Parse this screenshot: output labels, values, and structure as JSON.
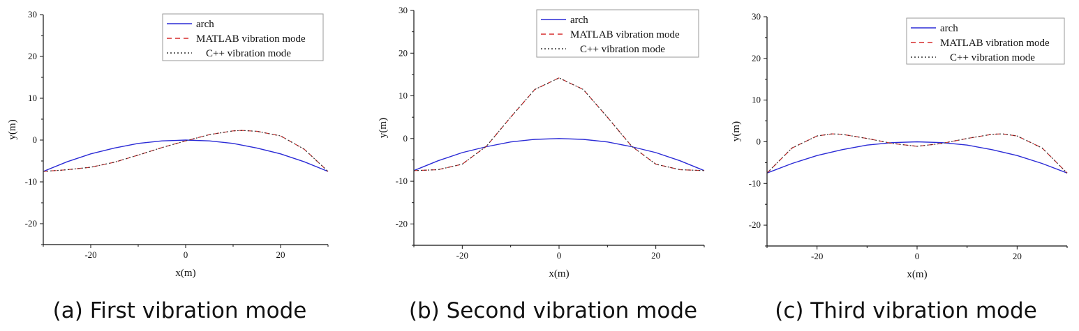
{
  "chart_data": [
    {
      "type": "line",
      "caption": "(a) First vibration mode",
      "xlabel": "x(m)",
      "ylabel": "y(m)",
      "xlim": [
        -30,
        30
      ],
      "ylim": [
        -25,
        30
      ],
      "xticks": [
        -20,
        0,
        20
      ],
      "yticks": [
        -20,
        -10,
        0,
        10,
        20,
        30
      ],
      "grid": false,
      "legend_position": "top-right",
      "colors": {
        "arch": "#2b2bd6",
        "matlab": "#d62b2b",
        "cpp": "#333333"
      },
      "series": [
        {
          "name": "arch",
          "style": "solid",
          "x": [
            -30,
            -25,
            -20,
            -15,
            -10,
            -5,
            0,
            5,
            10,
            15,
            20,
            25,
            30
          ],
          "y": [
            -7.5,
            -5.2,
            -3.3,
            -1.9,
            -0.8,
            -0.2,
            0,
            -0.2,
            -0.8,
            -1.9,
            -3.3,
            -5.2,
            -7.5
          ]
        },
        {
          "name": "MATLAB vibration mode",
          "style": "dashed",
          "x": [
            -30,
            -25,
            -20,
            -15,
            -10,
            -5,
            0,
            5,
            10,
            12,
            15,
            20,
            25,
            30
          ],
          "y": [
            -7.5,
            -7.1,
            -6.5,
            -5.3,
            -3.6,
            -1.8,
            -0.2,
            1.3,
            2.2,
            2.3,
            2.1,
            1.0,
            -2.2,
            -7.5
          ]
        },
        {
          "name": "C++ vibration mode",
          "style": "dotted",
          "x": [
            -30,
            -25,
            -20,
            -15,
            -10,
            -5,
            0,
            5,
            10,
            12,
            15,
            20,
            25,
            30
          ],
          "y": [
            -7.5,
            -7.1,
            -6.5,
            -5.3,
            -3.6,
            -1.8,
            -0.2,
            1.3,
            2.2,
            2.3,
            2.1,
            1.0,
            -2.2,
            -7.5
          ]
        }
      ]
    },
    {
      "type": "line",
      "caption": "(b) Second vibration mode",
      "xlabel": "x(m)",
      "ylabel": "y(m)",
      "xlim": [
        -30,
        30
      ],
      "ylim": [
        -25,
        30
      ],
      "xticks": [
        -20,
        0,
        20
      ],
      "yticks": [
        -20,
        -10,
        0,
        10,
        20,
        30
      ],
      "grid": false,
      "legend_position": "top-right",
      "colors": {
        "arch": "#2b2bd6",
        "matlab": "#d62b2b",
        "cpp": "#333333"
      },
      "series": [
        {
          "name": "arch",
          "style": "solid",
          "x": [
            -30,
            -25,
            -20,
            -15,
            -10,
            -5,
            0,
            5,
            10,
            15,
            20,
            25,
            30
          ],
          "y": [
            -7.5,
            -5.2,
            -3.3,
            -1.9,
            -0.8,
            -0.2,
            0,
            -0.2,
            -0.8,
            -1.9,
            -3.3,
            -5.2,
            -7.5
          ]
        },
        {
          "name": "MATLAB vibration mode",
          "style": "dashed",
          "x": [
            -30,
            -25,
            -20,
            -15,
            -10,
            -5,
            0,
            5,
            10,
            15,
            20,
            25,
            30
          ],
          "y": [
            -7.5,
            -7.3,
            -6.0,
            -1.8,
            5.0,
            11.5,
            14.2,
            11.5,
            5.0,
            -1.8,
            -6.0,
            -7.3,
            -7.5
          ]
        },
        {
          "name": "C++ vibration mode",
          "style": "dotted",
          "x": [
            -30,
            -25,
            -20,
            -15,
            -10,
            -5,
            0,
            5,
            10,
            15,
            20,
            25,
            30
          ],
          "y": [
            -7.5,
            -7.3,
            -6.0,
            -1.8,
            5.0,
            11.5,
            14.2,
            11.5,
            5.0,
            -1.8,
            -6.0,
            -7.3,
            -7.5
          ]
        }
      ]
    },
    {
      "type": "line",
      "caption": "(c) Third vibration mode",
      "xlabel": "x(m)",
      "ylabel": "y(m)",
      "xlim": [
        -30,
        30
      ],
      "ylim": [
        -25,
        30
      ],
      "xticks": [
        -20,
        0,
        20
      ],
      "yticks": [
        -20,
        -10,
        0,
        10,
        20,
        30
      ],
      "grid": false,
      "legend_position": "top-right",
      "colors": {
        "arch": "#2b2bd6",
        "matlab": "#d62b2b",
        "cpp": "#333333"
      },
      "series": [
        {
          "name": "arch",
          "style": "solid",
          "x": [
            -30,
            -25,
            -20,
            -15,
            -10,
            -5,
            0,
            5,
            10,
            15,
            20,
            25,
            30
          ],
          "y": [
            -7.5,
            -5.2,
            -3.3,
            -1.9,
            -0.8,
            -0.2,
            0,
            -0.2,
            -0.8,
            -1.9,
            -3.3,
            -5.2,
            -7.5
          ]
        },
        {
          "name": "MATLAB vibration mode",
          "style": "dashed",
          "x": [
            -30,
            -25,
            -20,
            -17,
            -15,
            -10,
            -5,
            0,
            5,
            10,
            15,
            17,
            20,
            25,
            30
          ],
          "y": [
            -7.5,
            -1.5,
            1.4,
            1.9,
            1.8,
            0.8,
            -0.4,
            -1.1,
            -0.4,
            0.8,
            1.8,
            1.9,
            1.4,
            -1.5,
            -7.5
          ]
        },
        {
          "name": "C++ vibration mode",
          "style": "dotted",
          "x": [
            -30,
            -25,
            -20,
            -17,
            -15,
            -10,
            -5,
            0,
            5,
            10,
            15,
            17,
            20,
            25,
            30
          ],
          "y": [
            -7.5,
            -1.5,
            1.4,
            1.9,
            1.8,
            0.8,
            -0.4,
            -1.1,
            -0.4,
            0.8,
            1.8,
            1.9,
            1.4,
            -1.5,
            -7.5
          ]
        }
      ]
    }
  ]
}
